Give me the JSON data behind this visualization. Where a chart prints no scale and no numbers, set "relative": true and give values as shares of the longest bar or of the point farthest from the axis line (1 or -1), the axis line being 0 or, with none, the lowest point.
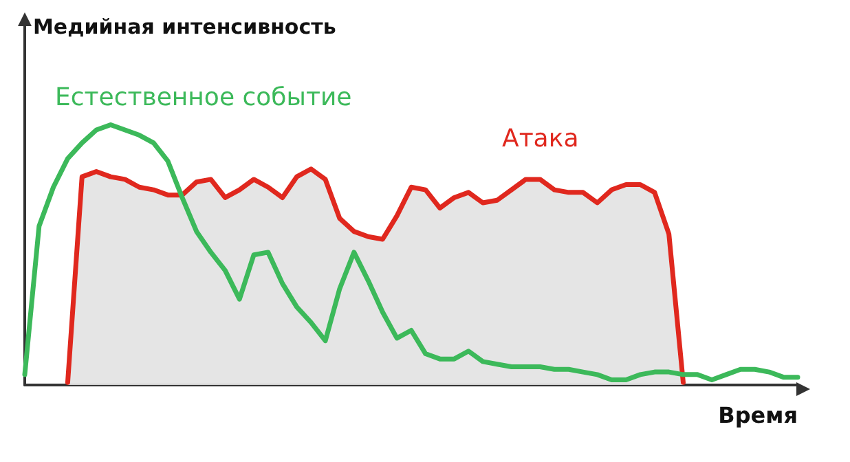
{
  "chart_data": {
    "type": "line",
    "relative": true,
    "xlabel": "Время",
    "ylabel": "Медийная интенсивность",
    "grid": false,
    "marker": "none",
    "legend": false,
    "categories": [
      null,
      null,
      null,
      null,
      null,
      null,
      null,
      null,
      null,
      null,
      null,
      null,
      null,
      null,
      null,
      null,
      null,
      null,
      null,
      null,
      null,
      null,
      null,
      null,
      null,
      null,
      null,
      null,
      null,
      null,
      null,
      null,
      null,
      null,
      null,
      null,
      null,
      null,
      null,
      null,
      null,
      null,
      null,
      null,
      null,
      null,
      null,
      null,
      null,
      null,
      null,
      null,
      null,
      null,
      null
    ],
    "series": [
      {
        "name": "Естественное событие",
        "type": "line",
        "color": "#3cb95a",
        "values": [
          0.04,
          0.61,
          0.76,
          0.87,
          0.93,
          0.98,
          1.0,
          0.98,
          0.96,
          0.93,
          0.86,
          0.72,
          0.59,
          0.51,
          0.44,
          0.33,
          0.5,
          0.51,
          0.39,
          0.3,
          0.24,
          0.17,
          0.37,
          0.51,
          0.4,
          0.28,
          0.18,
          0.21,
          0.12,
          0.1,
          0.1,
          0.13,
          0.09,
          0.08,
          0.07,
          0.07,
          0.07,
          0.06,
          0.06,
          0.05,
          0.04,
          0.02,
          0.02,
          0.04,
          0.05,
          0.05,
          0.04,
          0.04,
          0.02,
          0.04,
          0.06,
          0.06,
          0.05,
          0.03,
          0.03
        ]
      },
      {
        "name": "Атака",
        "type": "area",
        "color": "#e0281e",
        "values": [
          null,
          null,
          null,
          0.01,
          0.8,
          0.82,
          0.8,
          0.79,
          0.76,
          0.75,
          0.73,
          0.73,
          0.78,
          0.79,
          0.72,
          0.75,
          0.79,
          0.76,
          0.72,
          0.8,
          0.83,
          0.79,
          0.64,
          0.59,
          0.57,
          0.56,
          0.65,
          0.76,
          0.75,
          0.68,
          0.72,
          0.74,
          0.7,
          0.71,
          0.75,
          0.79,
          0.79,
          0.75,
          0.74,
          0.74,
          0.7,
          0.75,
          0.77,
          0.77,
          0.74,
          0.58,
          0.01,
          null,
          null,
          null,
          null,
          null,
          null,
          null,
          null
        ]
      }
    ]
  }
}
